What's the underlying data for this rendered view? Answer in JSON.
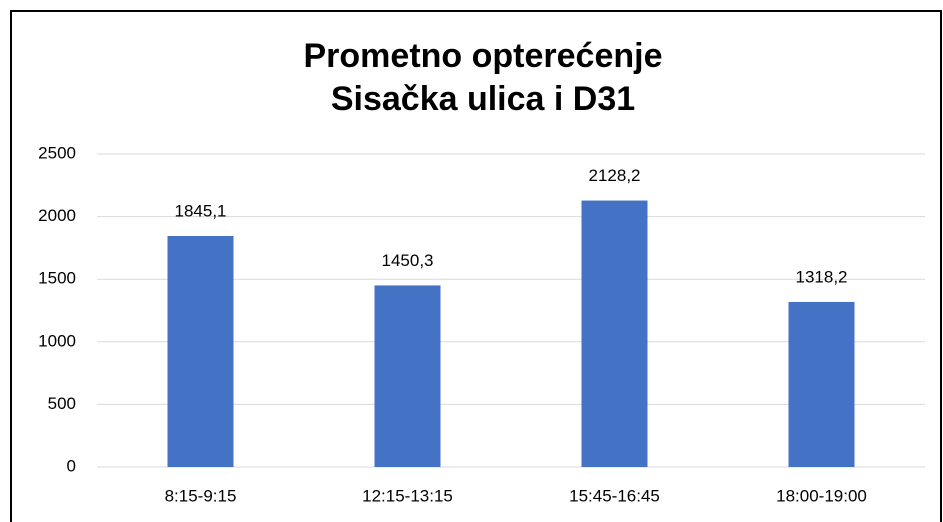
{
  "chart_data": {
    "type": "bar",
    "title": [
      "Prometno opterećenje",
      "Sisačka ulica i D31"
    ],
    "categories": [
      "8:15-9:15",
      "12:15-13:15",
      "15:45-16:45",
      "18:00-19:00"
    ],
    "values": [
      1845.1,
      1450.3,
      2128.2,
      1318.2
    ],
    "value_labels": [
      "1845,1",
      "1450,3",
      "2128,2",
      "1318,2"
    ],
    "color": "#4472c4",
    "ylim": [
      0,
      2500
    ],
    "yticks": [
      0,
      500,
      1000,
      1500,
      2000,
      2500
    ],
    "grid": true
  }
}
